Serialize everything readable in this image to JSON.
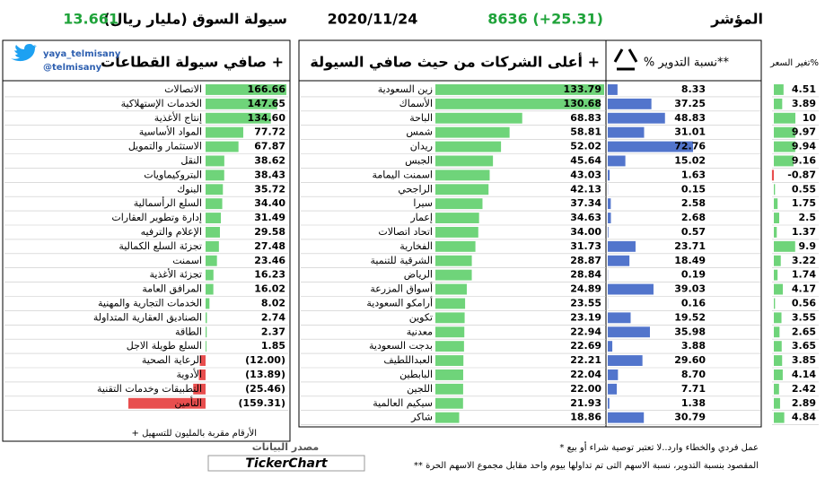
{
  "header": {
    "index_label": "المؤشر",
    "index_value": "8636 (+25.31)",
    "date": "2020/11/24",
    "liquidity_label": "سيولة السوق (مليار ريال)",
    "liquidity_value": "13.661"
  },
  "sectors": {
    "title": "صافي سيولة القطاعات +",
    "handle": "yaya_telmisany",
    "account": "@telmisany",
    "color": "#5fcf6c",
    "negative_color": "#e63b3b",
    "names": [
      "الاتصالات",
      "الخدمات الإستهلاكية",
      "إنتاج الأغذية",
      "المواد الأساسية",
      "الاستثمار والتمويل",
      "النقل",
      "البتروكيماويات",
      "البنوك",
      "السلع الرأسمالية",
      "إدارة وتطوير العقارات",
      "الإعلام والترفيه",
      "تجزئة السلع الكمالية",
      "اسمنت",
      "تجزئة الأغذية",
      "المرافق العامة",
      "الخدمات التجارية والمهنية",
      "الصناديق العقارية المتداولة",
      "الطاقة",
      "السلع طويلة الاجل",
      "الرعاية الصحية",
      "الأدوية",
      "التطبيقات وخدمات التقنية",
      "التأمين"
    ],
    "values": [
      166.66,
      147.65,
      134.6,
      77.72,
      67.87,
      38.62,
      38.43,
      35.72,
      34.4,
      31.49,
      29.58,
      27.48,
      23.46,
      16.23,
      16.02,
      8.02,
      2.74,
      2.37,
      1.85,
      -12,
      -13.89,
      -25.46,
      -159.31
    ],
    "value_labels": [
      "166.66",
      "147.65",
      "134.60",
      "77.72",
      "67.87",
      "38.62",
      "38.43",
      "35.72",
      "34.40",
      "31.49",
      "29.58",
      "27.48",
      "23.46",
      "16.23",
      "16.02",
      "8.02",
      "2.74",
      "2.37",
      "1.85",
      "(12.00)",
      "(13.89)",
      "(25.46)",
      "(159.31)"
    ],
    "note": "+ الأرقام مقربة بالمليون للتسهيل"
  },
  "companies": {
    "title": "أعلى الشركات من حيث صافي السيولة +",
    "color": "#5fcf6c",
    "names": [
      "زين السعودية",
      "الأسماك",
      "الباحة",
      "شمس",
      "ريدان",
      "الجبس",
      "اسمنت اليمامة",
      "الراجحي",
      "سيرا",
      "إعمار",
      "اتحاد اتصالات",
      "الفخارية",
      "الشرقية للتنمية",
      "الرياض",
      "أسواق المزرعة",
      "أرامكو السعودية",
      "تكوين",
      "معدنية",
      "بدجت السعودية",
      "العبداللطيف",
      "البابطين",
      "اللجين",
      "سيكيم العالمية",
      "شاكر"
    ],
    "values": [
      133.79,
      130.68,
      68.83,
      58.81,
      52.02,
      45.64,
      43.03,
      42.13,
      37.34,
      34.63,
      34,
      31.73,
      28.87,
      28.84,
      24.89,
      23.55,
      23.19,
      22.94,
      22.69,
      22.21,
      22.04,
      22,
      21.93,
      18.86
    ],
    "value_labels": [
      "133.79",
      "130.68",
      "68.83",
      "58.81",
      "52.02",
      "45.64",
      "43.03",
      "42.13",
      "37.34",
      "34.63",
      "34.00",
      "31.73",
      "28.87",
      "28.84",
      "24.89",
      "23.55",
      "23.19",
      "22.94",
      "22.69",
      "22.21",
      "22.04",
      "22.00",
      "21.93",
      "18.86"
    ]
  },
  "turnover": {
    "title": "% نسبة التدوير**",
    "color": "#3f66c6",
    "values": [
      8.33,
      37.25,
      48.83,
      31.01,
      72.76,
      15.02,
      1.63,
      0.15,
      2.58,
      2.68,
      0.57,
      23.71,
      18.49,
      0.19,
      39.03,
      0.16,
      19.52,
      35.98,
      3.88,
      29.6,
      8.7,
      7.71,
      1.38,
      30.79
    ],
    "value_labels": [
      "8.33",
      "37.25",
      "48.83",
      "31.01",
      "72.76",
      "15.02",
      "1.63",
      "0.15",
      "2.58",
      "2.68",
      "0.57",
      "23.71",
      "18.49",
      "0.19",
      "39.03",
      "0.16",
      "19.52",
      "35.98",
      "3.88",
      "29.60",
      "8.70",
      "7.71",
      "1.38",
      "30.79"
    ]
  },
  "price_change": {
    "title": "تغير السعر%",
    "color": "#5fcf6c",
    "negative_color": "#e63b3b",
    "values": [
      4.51,
      3.89,
      10,
      9.97,
      9.94,
      9.16,
      -0.87,
      0.55,
      1.75,
      2.5,
      1.37,
      9.9,
      3.22,
      1.74,
      4.17,
      0.56,
      3.55,
      2.65,
      3.65,
      3.85,
      4.14,
      2.42,
      2.89,
      4.84
    ],
    "value_labels": [
      "4.51",
      "3.89",
      "10",
      "9.97",
      "9.94",
      "9.16",
      "-0.87",
      "0.55",
      "1.75",
      "2.5",
      "1.37",
      "9.9",
      "3.22",
      "1.74",
      "4.17",
      "0.56",
      "3.55",
      "2.65",
      "3.65",
      "3.85",
      "4.14",
      "2.42",
      "2.89",
      "4.84"
    ]
  },
  "footer": {
    "disclaimer": "* عمل فردي والخطاء وارد..لا تعتبر توصية شراء أو بيع",
    "turnover_note": "** المقصود بنسبة التدوير، نسبة الاسهم التى تم تداولها بيوم واحد مقابل مجموع الاسهم الحرة",
    "source_label": "مصدر البيانات",
    "source": "TickerChart"
  }
}
